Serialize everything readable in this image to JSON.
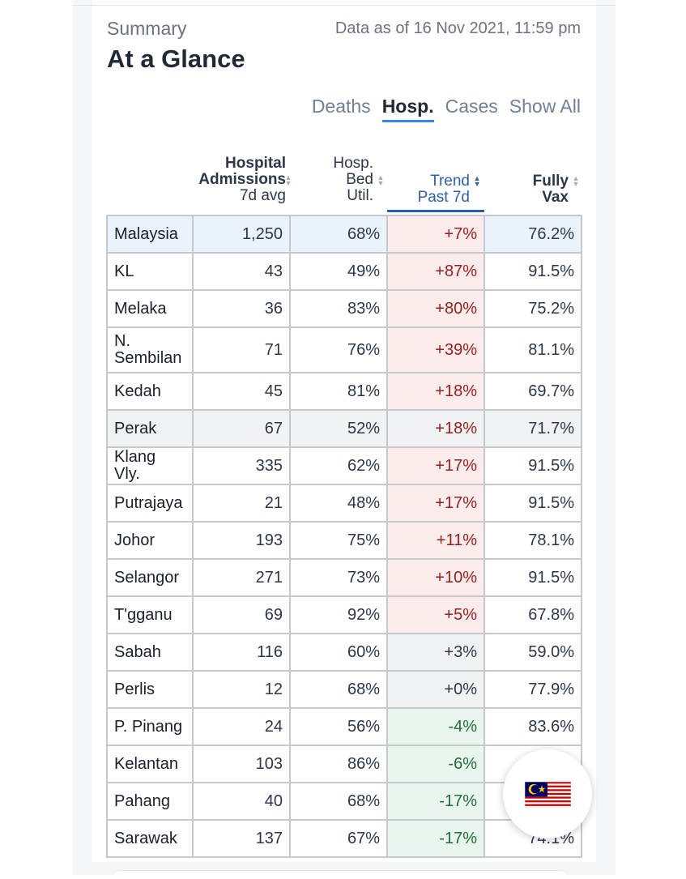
{
  "header": {
    "subtitle": "Summary",
    "title": "At a Glance",
    "data_as_of": "Data as of 16 Nov 2021, 11:59 pm"
  },
  "tabs": [
    {
      "label": "Deaths",
      "active": false
    },
    {
      "label": "Hosp.",
      "active": true
    },
    {
      "label": "Cases",
      "active": false
    },
    {
      "label": "Show All",
      "active": false
    }
  ],
  "columns": {
    "admissions": {
      "line1": "Hospital",
      "line2": "Admissions",
      "line3": "7d avg"
    },
    "bed": {
      "line1": "Hosp.",
      "line2": "Bed",
      "line3": "Util."
    },
    "trend": {
      "line1": "Trend",
      "line2": "Past 7d"
    },
    "vax": {
      "line1": "Fully",
      "line2": "Vax"
    }
  },
  "rows": [
    {
      "name": "Malaysia",
      "admissions": "1,250",
      "bed": "68%",
      "trend": "+7%",
      "vax": "76.2%"
    },
    {
      "name": "KL",
      "admissions": "43",
      "bed": "49%",
      "trend": "+87%",
      "vax": "91.5%"
    },
    {
      "name": "Melaka",
      "admissions": "36",
      "bed": "83%",
      "trend": "+80%",
      "vax": "75.2%"
    },
    {
      "name": "N. Sembilan",
      "admissions": "71",
      "bed": "76%",
      "trend": "+39%",
      "vax": "81.1%"
    },
    {
      "name": "Kedah",
      "admissions": "45",
      "bed": "81%",
      "trend": "+18%",
      "vax": "69.7%"
    },
    {
      "name": "Perak",
      "admissions": "67",
      "bed": "52%",
      "trend": "+18%",
      "vax": "71.7%"
    },
    {
      "name": "Klang Vly.",
      "admissions": "335",
      "bed": "62%",
      "trend": "+17%",
      "vax": "91.5%"
    },
    {
      "name": "Putrajaya",
      "admissions": "21",
      "bed": "48%",
      "trend": "+17%",
      "vax": "91.5%"
    },
    {
      "name": "Johor",
      "admissions": "193",
      "bed": "75%",
      "trend": "+11%",
      "vax": "78.1%"
    },
    {
      "name": "Selangor",
      "admissions": "271",
      "bed": "73%",
      "trend": "+10%",
      "vax": "91.5%"
    },
    {
      "name": "T'gganu",
      "admissions": "69",
      "bed": "92%",
      "trend": "+5%",
      "vax": "67.8%"
    },
    {
      "name": "Sabah",
      "admissions": "116",
      "bed": "60%",
      "trend": "+3%",
      "vax": "59.0%"
    },
    {
      "name": "Perlis",
      "admissions": "12",
      "bed": "68%",
      "trend": "+0%",
      "vax": "77.9%"
    },
    {
      "name": "P. Pinang",
      "admissions": "24",
      "bed": "56%",
      "trend": "-4%",
      "vax": "83.6%"
    },
    {
      "name": "Kelantan",
      "admissions": "103",
      "bed": "86%",
      "trend": "-6%",
      "vax": ""
    },
    {
      "name": "Pahang",
      "admissions": "40",
      "bed": "68%",
      "trend": "-17%",
      "vax": ""
    },
    {
      "name": "Sarawak",
      "admissions": "137",
      "bed": "67%",
      "trend": "-17%",
      "vax": "74.1%"
    }
  ],
  "icons": {
    "flag_button": "malaysia-flag-icon",
    "sort": "sort-arrows-icon"
  },
  "colors": {
    "accent": "#3b82f6",
    "trend_up": "#9b1c1c",
    "trend_down": "#1f6b3a",
    "highlight": "#eaf2fc"
  }
}
